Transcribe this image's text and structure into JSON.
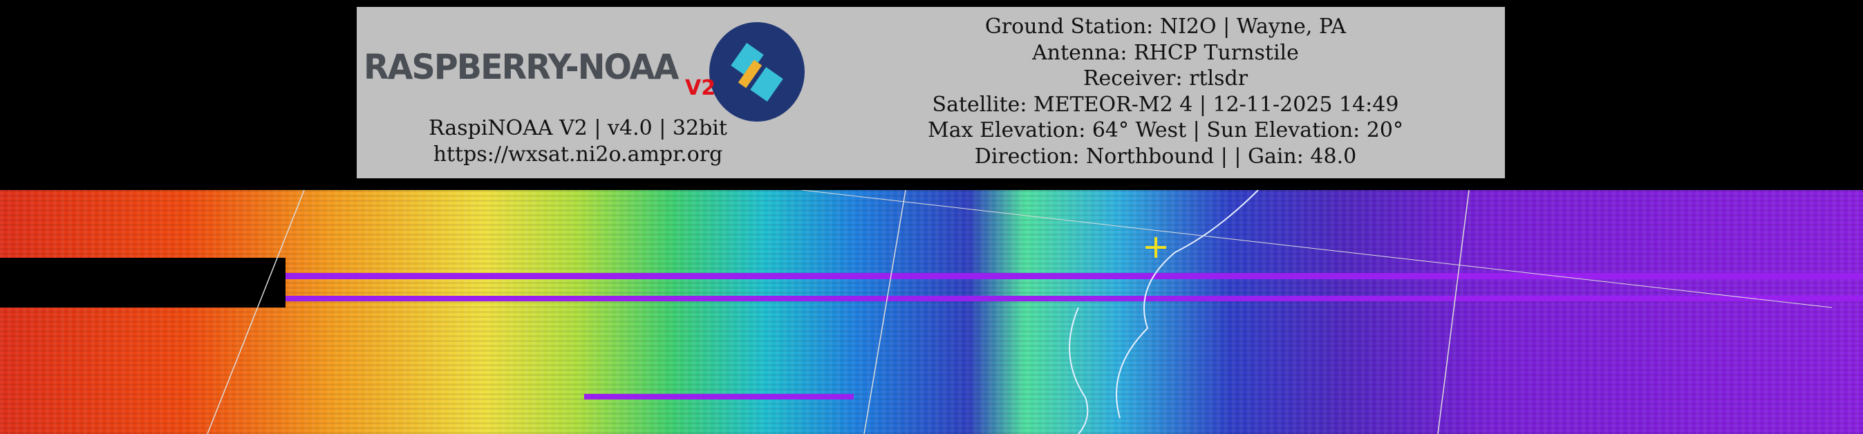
{
  "logo": {
    "text": "RASPBERRY-NOAA",
    "badge": "V2"
  },
  "software": {
    "version_line": "RaspiNOAA V2 | v4.0 | 32bit",
    "url": "https://wxsat.ni2o.ampr.org"
  },
  "pass_info": [
    "Ground Station: NI2O | Wayne, PA",
    "Antenna: RHCP Turnstile",
    "Receiver: rtlsdr",
    "Satellite: METEOR-M2 4 | 12-11-2025 14:49",
    "Max Elevation: 64° West | Sun Elevation: 20°",
    "Direction: Northbound | | Gain: 48.0"
  ],
  "colors": {
    "header_bg": "#c0c0c0",
    "stripe": "#9a20f0",
    "crosshair": "#f0e020"
  }
}
